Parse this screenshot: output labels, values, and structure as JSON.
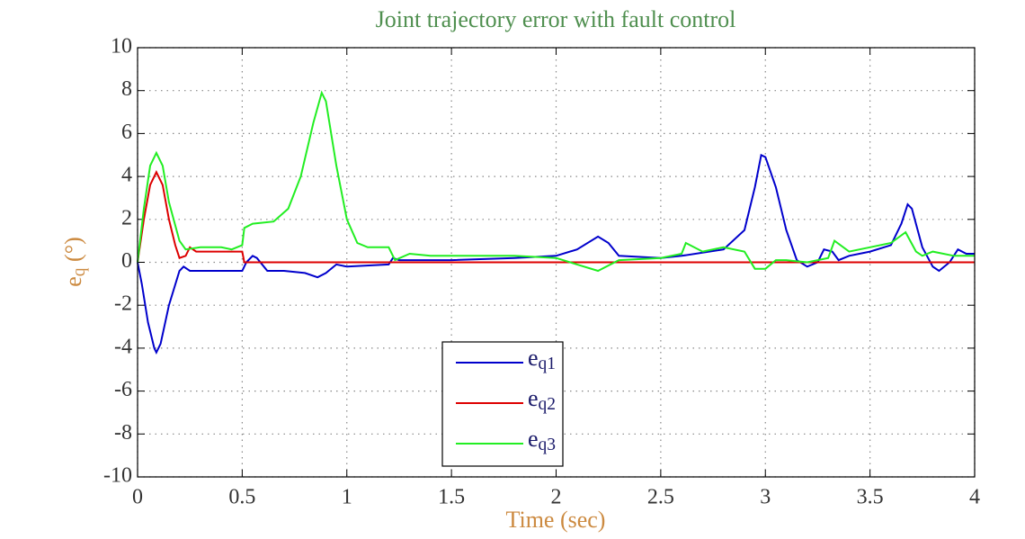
{
  "chart_data": {
    "type": "line",
    "title": "Joint trajectory error with fault control",
    "xlabel": "Time (sec)",
    "ylabel": "eq (°)",
    "xlim": [
      0,
      4
    ],
    "xticks": [
      0,
      0.5,
      1,
      1.5,
      2,
      2.5,
      3,
      3.5,
      4
    ],
    "ylim": [
      -10,
      10
    ],
    "yticks": [
      -10,
      -8,
      -6,
      -4,
      -2,
      0,
      2,
      4,
      6,
      8,
      10
    ],
    "grid": true,
    "legend": "bottom-center",
    "series": [
      {
        "name": "eq1",
        "color": "#0000cc",
        "x": [
          0,
          0.02,
          0.05,
          0.08,
          0.09,
          0.11,
          0.15,
          0.2,
          0.22,
          0.25,
          0.5,
          0.52,
          0.55,
          0.57,
          0.62,
          0.7,
          0.8,
          0.86,
          0.9,
          0.95,
          1.0,
          1.2,
          1.22,
          1.25,
          1.5,
          1.8,
          2.0,
          2.1,
          2.2,
          2.25,
          2.3,
          2.5,
          2.6,
          2.8,
          2.9,
          2.95,
          2.98,
          3.0,
          3.05,
          3.1,
          3.15,
          3.2,
          3.25,
          3.28,
          3.32,
          3.35,
          3.4,
          3.5,
          3.6,
          3.65,
          3.68,
          3.7,
          3.75,
          3.8,
          3.83,
          3.88,
          3.92,
          3.96,
          4.0
        ],
        "values": [
          0,
          -1,
          -2.8,
          -4,
          -4.2,
          -3.8,
          -2,
          -0.4,
          -0.2,
          -0.4,
          -0.4,
          0,
          0.3,
          0.2,
          -0.4,
          -0.4,
          -0.5,
          -0.7,
          -0.5,
          -0.1,
          -0.2,
          -0.1,
          0.2,
          0.1,
          0.1,
          0.2,
          0.3,
          0.6,
          1.2,
          0.9,
          0.3,
          0.2,
          0.3,
          0.6,
          1.5,
          3.5,
          5.0,
          4.9,
          3.5,
          1.5,
          0.1,
          -0.2,
          0,
          0.6,
          0.5,
          0.1,
          0.3,
          0.5,
          0.8,
          1.8,
          2.7,
          2.5,
          0.7,
          -0.2,
          -0.4,
          0,
          0.6,
          0.4,
          0.4
        ]
      },
      {
        "name": "eq2",
        "color": "#dd0000",
        "x": [
          0,
          0.03,
          0.06,
          0.09,
          0.12,
          0.15,
          0.18,
          0.2,
          0.23,
          0.25,
          0.28,
          0.5,
          0.51,
          4.0
        ],
        "values": [
          0,
          2,
          3.6,
          4.2,
          3.6,
          2,
          0.8,
          0.2,
          0.3,
          0.7,
          0.5,
          0.5,
          0,
          0
        ]
      },
      {
        "name": "eq3",
        "color": "#22ee22",
        "x": [
          0,
          0.03,
          0.06,
          0.09,
          0.12,
          0.15,
          0.2,
          0.23,
          0.3,
          0.4,
          0.45,
          0.5,
          0.51,
          0.55,
          0.65,
          0.72,
          0.78,
          0.84,
          0.88,
          0.9,
          0.95,
          1.0,
          1.05,
          1.1,
          1.2,
          1.23,
          1.3,
          1.4,
          1.5,
          1.8,
          2.0,
          2.1,
          2.2,
          2.3,
          2.5,
          2.6,
          2.62,
          2.7,
          2.8,
          2.9,
          2.95,
          3.0,
          3.05,
          3.1,
          3.2,
          3.3,
          3.33,
          3.4,
          3.5,
          3.6,
          3.67,
          3.72,
          3.75,
          3.8,
          3.9,
          4.0
        ],
        "values": [
          0,
          2.5,
          4.5,
          5.1,
          4.5,
          2.8,
          1.0,
          0.6,
          0.7,
          0.7,
          0.6,
          0.8,
          1.6,
          1.8,
          1.9,
          2.5,
          4,
          6.5,
          7.9,
          7.5,
          4.5,
          2,
          0.9,
          0.7,
          0.7,
          0.1,
          0.4,
          0.3,
          0.3,
          0.3,
          0.2,
          -0.1,
          -0.4,
          0.1,
          0.2,
          0.4,
          0.9,
          0.5,
          0.7,
          0.5,
          -0.3,
          -0.3,
          0.1,
          0.1,
          0,
          0.2,
          1.0,
          0.5,
          0.7,
          0.9,
          1.4,
          0.5,
          0.3,
          0.5,
          0.3,
          0.3
        ]
      }
    ]
  }
}
